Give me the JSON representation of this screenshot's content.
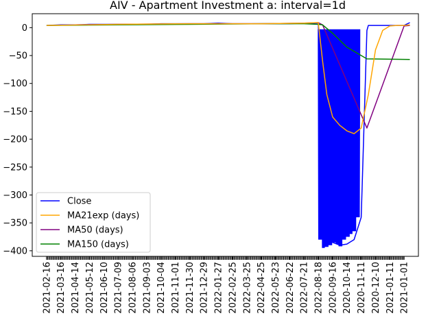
{
  "chart_data": {
    "type": "line",
    "title": "AIV - Apartment Investment a: interval=1d",
    "xlabel": "",
    "ylabel": "",
    "ylim": [
      -410,
      25
    ],
    "yticks": [
      0,
      -50,
      -100,
      -150,
      -200,
      -250,
      -300,
      -350,
      -400
    ],
    "xtick_labels": [
      "2021-02-16",
      "2021-03-16",
      "2021-04-14",
      "2021-05-12",
      "2021-06-10",
      "2021-07-09",
      "2021-08-06",
      "2021-09-03",
      "2021-10-04",
      "2021-11-01",
      "2021-11-30",
      "2021-12-29",
      "2022-01-27",
      "2022-02-25",
      "2022-03-25",
      "2022-04-25",
      "2022-05-23",
      "2022-06-22",
      "2022-07-21",
      "2022-08-18",
      "2020-09-16",
      "2020-10-14",
      "2020-11-11",
      "2020-12-10",
      "2021-01-11",
      "2021-01-01"
    ],
    "legend_position": "lower-left",
    "grid": false,
    "series": [
      {
        "name": "Close",
        "color": "#0000ff",
        "x": [
          0,
          1,
          2,
          3,
          4,
          5,
          6,
          7,
          8,
          9,
          10,
          11,
          12,
          13,
          14,
          15,
          16,
          17,
          18,
          19,
          19.5,
          20,
          20.5,
          21,
          21.5,
          22,
          22.4,
          22.5,
          23,
          24,
          25,
          25.4
        ],
        "y": [
          4,
          5,
          5,
          6,
          6,
          6,
          6,
          6,
          7,
          7,
          7,
          7,
          8,
          7,
          7,
          7,
          7,
          7,
          8,
          8,
          -380,
          -385,
          -390,
          -388,
          -380,
          -340,
          -5,
          4,
          4,
          4,
          4,
          9
        ],
        "band": {
          "x_start": 19.0,
          "x_end": 21.9,
          "lows": [
            -380,
            -395,
            -393,
            -390,
            -385,
            -388,
            -392,
            -380,
            -375,
            -370,
            -365,
            -340
          ],
          "high": -3
        }
      },
      {
        "name": "MA21exp (days)",
        "color": "#ffa500",
        "x": [
          0,
          5,
          10,
          15,
          18,
          19,
          19.3,
          19.6,
          20,
          20.5,
          21,
          21.5,
          22,
          22.5,
          23,
          23.5,
          24,
          24.5,
          25,
          25.4
        ],
        "y": [
          4,
          6,
          7,
          7,
          8,
          9,
          -60,
          -120,
          -160,
          -175,
          -185,
          -190,
          -180,
          -120,
          -40,
          -5,
          3,
          4,
          4,
          5
        ]
      },
      {
        "name": "MA50 (days)",
        "color": "#800080",
        "x": [
          2,
          5,
          10,
          15,
          18,
          19,
          19.3,
          22.4,
          25,
          25.4
        ],
        "y": [
          5,
          6,
          7,
          7,
          8,
          9,
          5,
          -180,
          3,
          4
        ]
      },
      {
        "name": "MA150 (days)",
        "color": "#008000",
        "x": [
          0,
          5,
          10,
          15,
          18,
          19,
          19.3,
          20,
          21,
          22.4,
          25.4
        ],
        "y": [
          4,
          5,
          6,
          7,
          7,
          6,
          5,
          -10,
          -35,
          -56,
          -57
        ]
      }
    ]
  }
}
